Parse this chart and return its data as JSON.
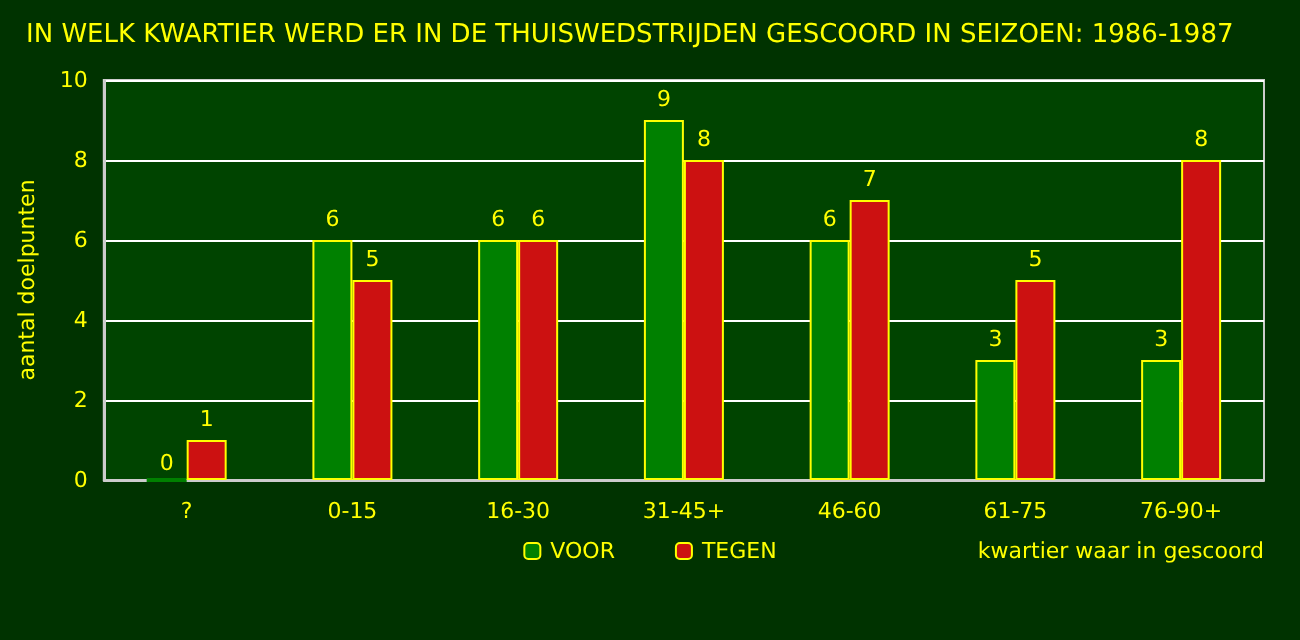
{
  "chart_data": {
    "type": "bar",
    "title": "IN WELK KWARTIER WERD ER IN DE THUISWEDSTRIJDEN GESCOORD IN SEIZOEN: 1986-1987",
    "xlabel": "kwartier waar in gescoord",
    "ylabel": "aantal doelpunten",
    "categories": [
      "?",
      "0-15",
      "16-30",
      "31-45+",
      "46-60",
      "61-75",
      "76-90+"
    ],
    "series": [
      {
        "name": "VOOR",
        "color": "#008000",
        "values": [
          0,
          6,
          6,
          9,
          6,
          3,
          3
        ]
      },
      {
        "name": "TEGEN",
        "color": "#cc1111",
        "values": [
          1,
          5,
          6,
          8,
          7,
          5,
          8
        ]
      }
    ],
    "ylim": [
      0,
      10
    ],
    "yticks": [
      0,
      2,
      4,
      6,
      8,
      10
    ],
    "grid": "y",
    "legend": "bottom",
    "data_labels": true
  }
}
